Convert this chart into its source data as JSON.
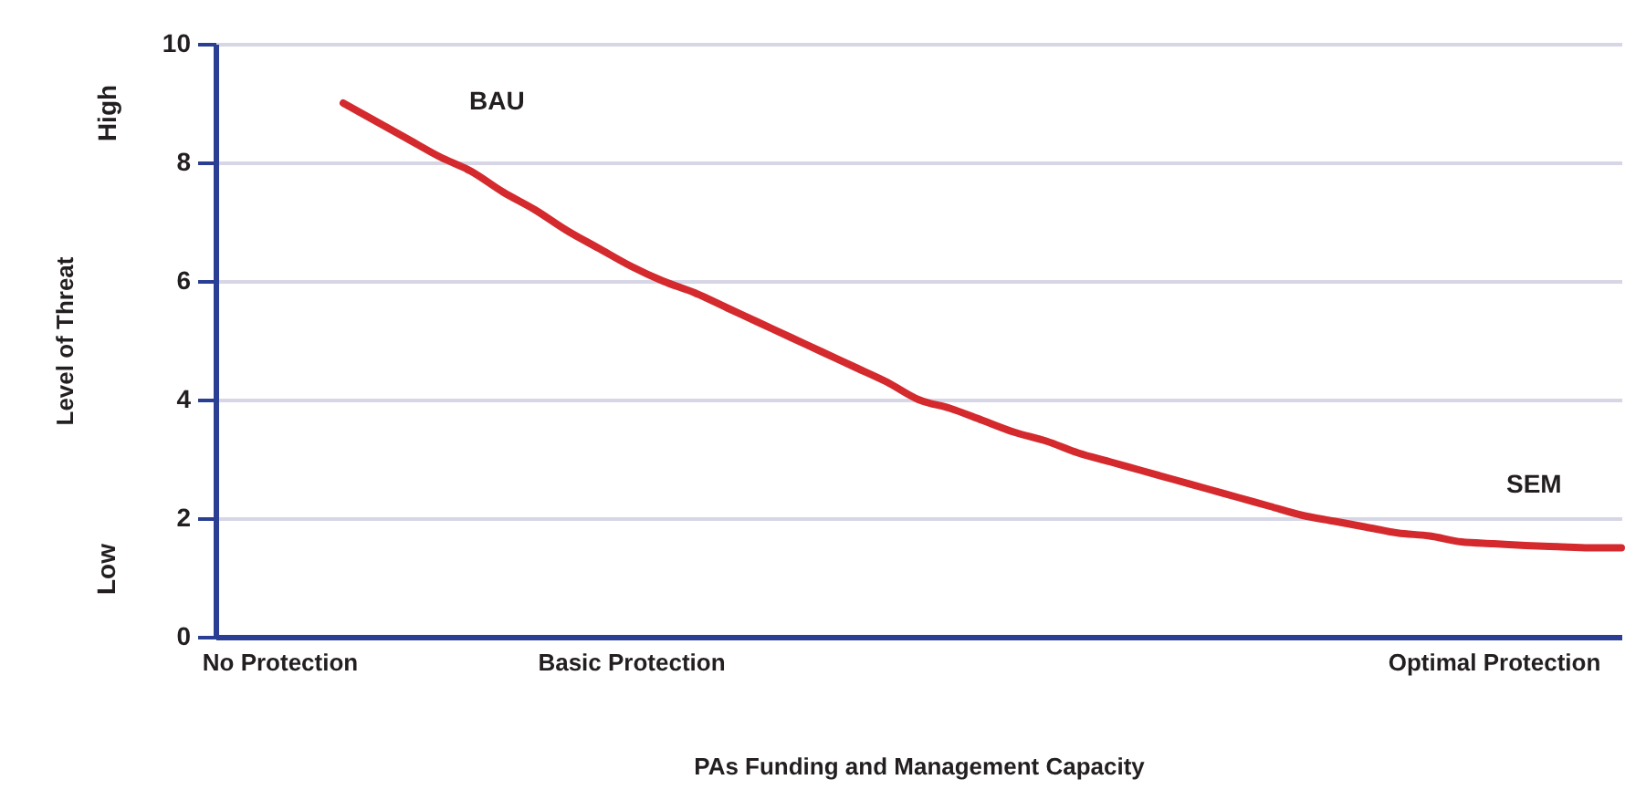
{
  "chart_data": {
    "type": "line",
    "xlabel": "PAs Funding and Management Capacity",
    "ylabel": "Level of Threat",
    "categories": [
      null,
      null,
      "No Protection",
      null,
      null,
      null,
      null,
      null,
      null,
      null,
      null,
      null,
      null,
      "Basic Protection",
      null,
      null,
      null,
      null,
      null,
      null,
      null,
      null,
      null,
      null,
      null,
      null,
      null,
      null,
      null,
      null,
      null,
      null,
      null,
      null,
      null,
      null,
      null,
      null,
      null,
      null,
      "Optimal Protection",
      null,
      null,
      null,
      null
    ],
    "series": [
      {
        "color": "#d42a2e",
        "values": [
          null,
          null,
          null,
          null,
          9.0,
          8.7,
          8.4,
          8.1,
          7.85,
          7.5,
          7.2,
          6.85,
          6.55,
          6.25,
          6.0,
          5.8,
          5.55,
          5.3,
          5.05,
          4.8,
          4.55,
          4.3,
          4.0,
          3.85,
          3.65,
          3.45,
          3.3,
          3.1,
          2.95,
          2.8,
          2.65,
          2.5,
          2.35,
          2.2,
          2.05,
          1.95,
          1.85,
          1.75,
          1.7,
          1.6,
          1.57,
          1.54,
          1.52,
          1.5,
          1.5
        ]
      }
    ],
    "ylim": [
      0,
      10
    ],
    "yticks": [
      0,
      2,
      4,
      6,
      8,
      10
    ],
    "grid": "y",
    "marker": "none",
    "line_style": "solid",
    "annotations": [
      "BAU",
      "SEM",
      "High",
      "Low"
    ]
  }
}
